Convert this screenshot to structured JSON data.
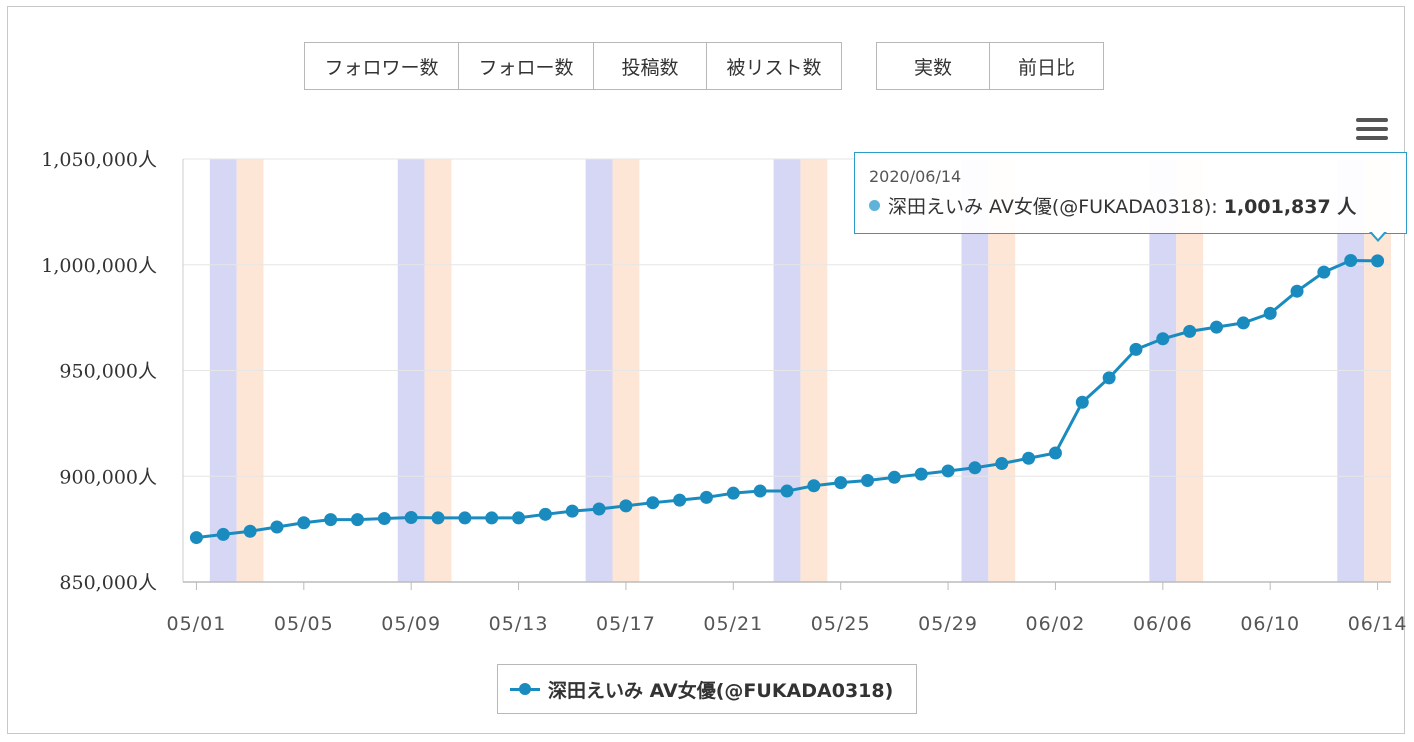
{
  "metric_buttons": [
    {
      "label": "フォロワー数",
      "active": true
    },
    {
      "label": "フォロー数",
      "active": false
    },
    {
      "label": "投稿数",
      "active": false
    },
    {
      "label": "被リスト数",
      "active": false
    }
  ],
  "mode_buttons": [
    {
      "label": "実数",
      "active": true
    },
    {
      "label": "前日比",
      "active": false
    }
  ],
  "tooltip": {
    "date": "2020/06/14",
    "series": "深田えいみ AV女優(@FUKADA0318)",
    "separator": ":",
    "value": "1,001,837 人"
  },
  "legend": {
    "label": "深田えいみ AV女優(@FUKADA0318)"
  },
  "colors": {
    "series": "#1a8bbf",
    "saturday_band": "#d6d6f5",
    "sunday_band": "#fde6d6",
    "grid": "#e6e6e6"
  },
  "chart_data": {
    "type": "line",
    "title": "",
    "xlabel": "",
    "ylabel": "",
    "ylim": [
      850000,
      1050000
    ],
    "y_ticks": [
      "850,000人",
      "900,000人",
      "950,000人",
      "1,000,000人",
      "1,050,000人"
    ],
    "x_ticks": [
      "05/01",
      "05/05",
      "05/09",
      "05/13",
      "05/17",
      "05/21",
      "05/25",
      "05/29",
      "06/02",
      "06/06",
      "06/10",
      "06/14"
    ],
    "weekend_bands": [
      "05/02",
      "05/09",
      "05/16",
      "05/23",
      "05/30",
      "06/06",
      "06/13"
    ],
    "x": [
      "05/01",
      "05/02",
      "05/03",
      "05/04",
      "05/05",
      "05/06",
      "05/07",
      "05/08",
      "05/09",
      "05/10",
      "05/11",
      "05/12",
      "05/13",
      "05/14",
      "05/15",
      "05/16",
      "05/17",
      "05/18",
      "05/19",
      "05/20",
      "05/21",
      "05/22",
      "05/23",
      "05/24",
      "05/25",
      "05/26",
      "05/27",
      "05/28",
      "05/29",
      "05/30",
      "05/31",
      "06/01",
      "06/02",
      "06/03",
      "06/04",
      "06/05",
      "06/06",
      "06/07",
      "06/08",
      "06/09",
      "06/10",
      "06/11",
      "06/12",
      "06/13",
      "06/14"
    ],
    "series": [
      {
        "name": "深田えいみ AV女優(@FUKADA0318)",
        "values": [
          871000,
          872500,
          874000,
          876000,
          878000,
          879500,
          879500,
          880000,
          880500,
          880300,
          880300,
          880300,
          880300,
          882000,
          883500,
          884500,
          886000,
          887500,
          888700,
          890000,
          892000,
          893000,
          893000,
          895500,
          897000,
          898000,
          899500,
          901000,
          902500,
          904000,
          906000,
          908500,
          911000,
          935000,
          946500,
          960000,
          965000,
          968500,
          970500,
          972500,
          977000,
          987500,
          996500,
          1002000,
          1001837
        ]
      }
    ]
  }
}
